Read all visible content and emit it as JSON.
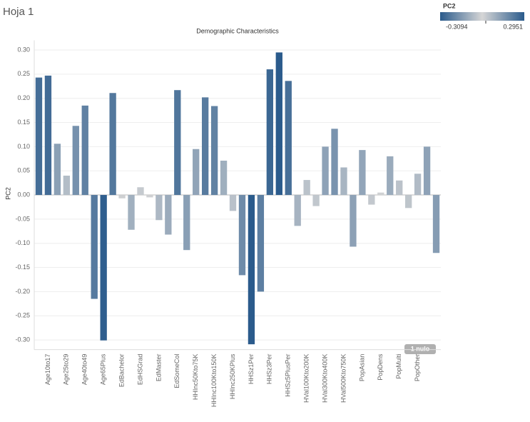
{
  "sheet_title": "Hoja 1",
  "chart_data": {
    "type": "bar",
    "title": "Demographic Characteristics",
    "y_label": "PC2",
    "categories": [
      null,
      "Age10to17",
      null,
      "Age25to29",
      null,
      "Age40to49",
      null,
      "Age65Plus",
      null,
      "EdBachelor",
      null,
      "EdHSGrad",
      null,
      "EdMaster",
      null,
      "EdSomeCol",
      null,
      "HHInc50Kto75K",
      null,
      "HHInc100Kto150K",
      null,
      "HHInc250KPlus",
      null,
      "HHSz1Per",
      null,
      "HHSz3Per",
      null,
      "HHSz5PlusPer",
      null,
      "HVal100Kto200K",
      null,
      "HVal300Kto400K",
      null,
      "HVal500Kto750K",
      null,
      "PopAsian",
      null,
      "PopDens",
      null,
      "PopMulti",
      null,
      "PopOther",
      null,
      null
    ],
    "values": [
      0.243,
      0.247,
      0.106,
      0.04,
      0.143,
      0.185,
      -0.215,
      -0.301,
      0.211,
      -0.007,
      -0.072,
      0.016,
      -0.005,
      -0.052,
      -0.082,
      0.217,
      -0.114,
      0.095,
      0.202,
      0.184,
      0.071,
      -0.033,
      -0.166,
      -0.309,
      -0.2,
      0.26,
      0.295,
      0.236,
      -0.064,
      0.031,
      -0.023,
      0.1,
      0.137,
      0.057,
      -0.107,
      0.093,
      -0.02,
      0.005,
      0.08,
      0.03,
      -0.027,
      0.044,
      0.1,
      -0.12
    ],
    "ylim": [
      -0.32,
      0.32
    ],
    "yticks": [
      {
        "value": 0.3,
        "label": "0.30"
      },
      0.25,
      {
        "value": 0.2,
        "label": "0.20"
      },
      0.15,
      {
        "value": 0.1,
        "label": "0.10"
      },
      0.05,
      {
        "value": 0.0,
        "label": "0.00"
      },
      -0.05,
      {
        "value": -0.1,
        "label": "-0.10"
      },
      -0.15,
      {
        "value": -0.2,
        "label": "-0.20"
      },
      -0.25,
      {
        "value": -0.3,
        "label": "-0.30"
      }
    ],
    "grid": true,
    "color_legend": {
      "title": "PC2",
      "min": -0.3094,
      "max": 0.2951,
      "end_color": "#2b5b8c",
      "mid_color": "#d6d6d6"
    },
    "null_badge": "1 nulo"
  }
}
